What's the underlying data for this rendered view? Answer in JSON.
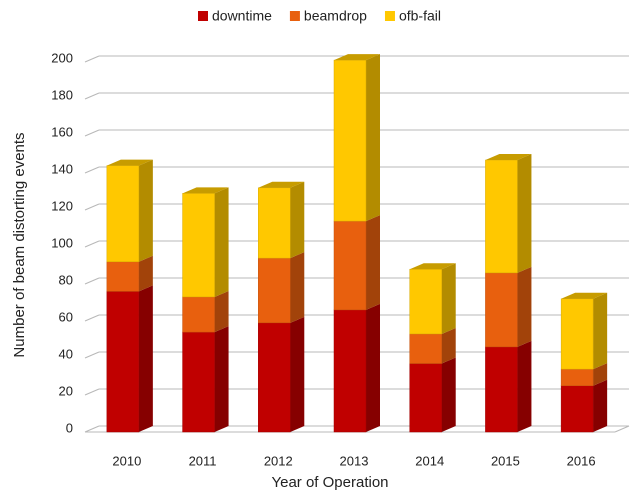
{
  "chart_data": {
    "type": "bar",
    "stacked": true,
    "y_label": "Number of beam distorting events",
    "x_label": "Year of Operation",
    "categories": [
      "2010",
      "2011",
      "2012",
      "2013",
      "2014",
      "2015",
      "2016"
    ],
    "series": [
      {
        "name": "downtime",
        "color": "#c00000",
        "values": [
          76,
          54,
          59,
          66,
          37,
          46,
          25
        ]
      },
      {
        "name": "beamdrop",
        "color": "#e8600e",
        "values": [
          16,
          19,
          35,
          48,
          16,
          40,
          9
        ]
      },
      {
        "name": "ofb-fail",
        "color": "#ffc800",
        "values": [
          52,
          56,
          38,
          87,
          35,
          61,
          38
        ]
      }
    ],
    "ylim": [
      0,
      200
    ],
    "yticks": [
      0,
      20,
      40,
      60,
      80,
      100,
      120,
      140,
      160,
      180,
      200
    ],
    "grid": true,
    "legend": "top"
  }
}
